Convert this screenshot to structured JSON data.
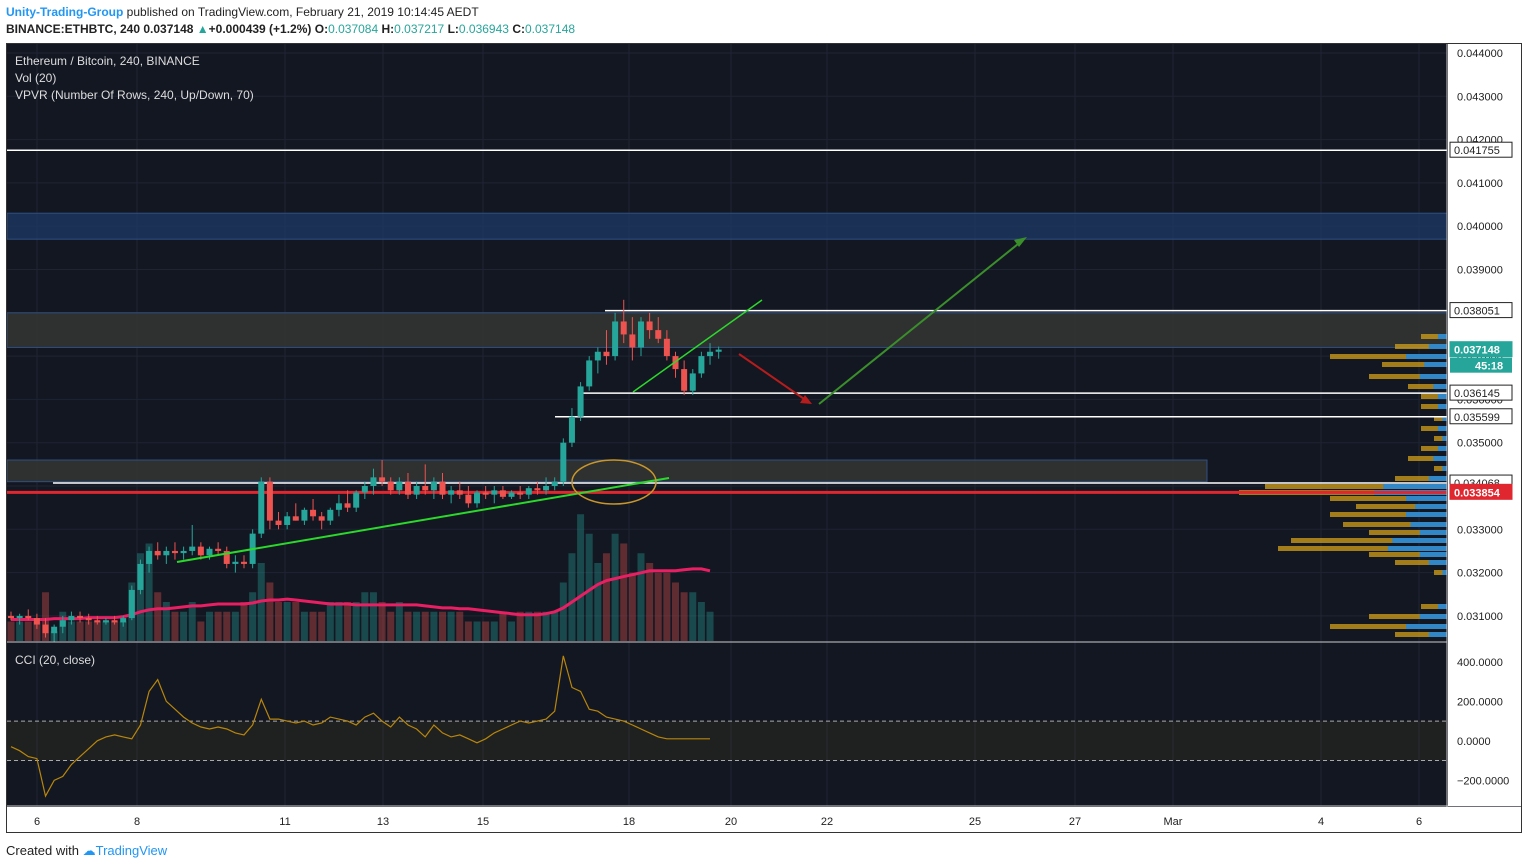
{
  "header": {
    "author": "Unity-Trading-Group",
    "published_text": "published on TradingView.com, February 21, 2019 10:14:45 AEDT",
    "symbol": "BINANCE:ETHBTC, 240",
    "price": "0.037148",
    "change": "+0.000439 (+1.2%)",
    "o_label": "O:",
    "o_value": "0.037084",
    "h_label": "H:",
    "h_value": "0.037217",
    "l_label": "L:",
    "l_value": "0.036943",
    "c_label": "C:",
    "c_value": "0.037148"
  },
  "legend": {
    "title": "Ethereum / Bitcoin, 240, BINANCE",
    "vol": "Vol (20)",
    "vpvr": "VPVR (Number Of Rows, 240, Up/Down, 70)",
    "cci": "CCI (20, close)"
  },
  "footer": {
    "created_with": "Created with",
    "brand": "TradingView"
  },
  "price_labels": {
    "countdown": "45:18"
  },
  "colors": {
    "background": "#131722",
    "up": "#26a69a",
    "down": "#ef5350",
    "vol_ma": "#e91e63",
    "cci": "#b8860b",
    "support_red": "#e0262f",
    "trend_green": "#2bd92b",
    "arrow_green": "#3a8f2a",
    "arrow_red": "#b71c1c"
  },
  "chart_data": {
    "type": "candlestick",
    "symbol": "ETHBTC",
    "timeframe": "240",
    "x_ticks": [
      "6",
      "8",
      "11",
      "13",
      "15",
      "18",
      "20",
      "22",
      "25",
      "27",
      "Mar",
      "4",
      "6"
    ],
    "y_ticks": [
      "0.044000",
      "0.043000",
      "0.042000",
      "0.041000",
      "0.040000",
      "0.039000",
      "0.038000",
      "0.037000",
      "0.036000",
      "0.035000",
      "0.034000",
      "0.033000",
      "0.032000",
      "0.031000"
    ],
    "ylim": [
      0.0303,
      0.0441
    ],
    "levels": [
      {
        "label": "0.041755",
        "value": 0.041755,
        "color": "#ffffff"
      },
      {
        "label": "0.038051",
        "value": 0.038051,
        "color": "#ffffff"
      },
      {
        "label": "0.036145",
        "value": 0.036145,
        "color": "#ffffff"
      },
      {
        "label": "0.035599",
        "value": 0.035599,
        "color": "#ffffff"
      },
      {
        "label": "0.034068",
        "value": 0.034068,
        "color": "#ffffff"
      },
      {
        "label": "0.033854",
        "value": 0.033854,
        "color": "#e0262f"
      },
      {
        "label": "0.037148",
        "value": 0.037148,
        "color": "#26a69a"
      }
    ],
    "zones": [
      {
        "from": 0.0397,
        "to": 0.0403
      },
      {
        "from": 0.0372,
        "to": 0.038
      },
      {
        "from": 0.0341,
        "to": 0.0346
      }
    ],
    "ohlc": [
      [
        0.031,
        0.0311,
        0.0309,
        0.03095
      ],
      [
        0.03095,
        0.03105,
        0.0308,
        0.031
      ],
      [
        0.031,
        0.03115,
        0.0309,
        0.03095
      ],
      [
        0.03095,
        0.03105,
        0.0307,
        0.0308
      ],
      [
        0.0308,
        0.03095,
        0.0305,
        0.0306
      ],
      [
        0.0306,
        0.0308,
        0.0304,
        0.03075
      ],
      [
        0.03075,
        0.031,
        0.0306,
        0.0309
      ],
      [
        0.0309,
        0.0311,
        0.0308,
        0.031
      ],
      [
        0.031,
        0.0311,
        0.03085,
        0.03095
      ],
      [
        0.03095,
        0.03105,
        0.0308,
        0.0309
      ],
      [
        0.0309,
        0.031,
        0.0308,
        0.03085
      ],
      [
        0.03085,
        0.03095,
        0.0308,
        0.0309
      ],
      [
        0.0309,
        0.031,
        0.0308,
        0.03085
      ],
      [
        0.03085,
        0.031,
        0.03075,
        0.03095
      ],
      [
        0.03095,
        0.0317,
        0.0309,
        0.0316
      ],
      [
        0.0316,
        0.0323,
        0.0315,
        0.0322
      ],
      [
        0.0322,
        0.0326,
        0.032,
        0.0325
      ],
      [
        0.0325,
        0.0327,
        0.0323,
        0.0324
      ],
      [
        0.0324,
        0.0326,
        0.0322,
        0.0325
      ],
      [
        0.0325,
        0.0327,
        0.0323,
        0.03245
      ],
      [
        0.03245,
        0.0326,
        0.0323,
        0.0325
      ],
      [
        0.0325,
        0.0331,
        0.0324,
        0.0326
      ],
      [
        0.0326,
        0.0327,
        0.0323,
        0.0324
      ],
      [
        0.0324,
        0.0326,
        0.0323,
        0.03255
      ],
      [
        0.03255,
        0.0327,
        0.0324,
        0.0325
      ],
      [
        0.0325,
        0.0326,
        0.0321,
        0.0322
      ],
      [
        0.0322,
        0.0324,
        0.032,
        0.03225
      ],
      [
        0.03225,
        0.0324,
        0.0321,
        0.0322
      ],
      [
        0.0322,
        0.033,
        0.0321,
        0.0329
      ],
      [
        0.0329,
        0.0342,
        0.0328,
        0.0341
      ],
      [
        0.0341,
        0.0342,
        0.033,
        0.0332
      ],
      [
        0.0332,
        0.0334,
        0.033,
        0.0331
      ],
      [
        0.0331,
        0.0334,
        0.033,
        0.0333
      ],
      [
        0.0333,
        0.0336,
        0.0332,
        0.0332
      ],
      [
        0.0332,
        0.0335,
        0.0331,
        0.03345
      ],
      [
        0.03345,
        0.0337,
        0.0332,
        0.0333
      ],
      [
        0.0333,
        0.0334,
        0.033,
        0.0332
      ],
      [
        0.0332,
        0.0335,
        0.0331,
        0.03345
      ],
      [
        0.03345,
        0.0338,
        0.0333,
        0.0336
      ],
      [
        0.0336,
        0.0339,
        0.0334,
        0.0335
      ],
      [
        0.0335,
        0.0339,
        0.0334,
        0.03385
      ],
      [
        0.03385,
        0.0341,
        0.0337,
        0.034
      ],
      [
        0.034,
        0.0344,
        0.0338,
        0.0342
      ],
      [
        0.0342,
        0.0346,
        0.034,
        0.0341
      ],
      [
        0.0341,
        0.0342,
        0.0338,
        0.0339
      ],
      [
        0.0339,
        0.0342,
        0.0338,
        0.0341
      ],
      [
        0.0341,
        0.0343,
        0.0337,
        0.0338
      ],
      [
        0.0338,
        0.0341,
        0.0337,
        0.034
      ],
      [
        0.034,
        0.0345,
        0.0338,
        0.0339
      ],
      [
        0.0339,
        0.0342,
        0.0337,
        0.0341
      ],
      [
        0.0341,
        0.0343,
        0.0337,
        0.0338
      ],
      [
        0.0338,
        0.034,
        0.0336,
        0.0339
      ],
      [
        0.0339,
        0.0341,
        0.0337,
        0.0338
      ],
      [
        0.0338,
        0.034,
        0.0335,
        0.0336
      ],
      [
        0.0336,
        0.0339,
        0.0335,
        0.03385
      ],
      [
        0.03385,
        0.034,
        0.0337,
        0.0338
      ],
      [
        0.0338,
        0.034,
        0.0336,
        0.0339
      ],
      [
        0.0339,
        0.034,
        0.0337,
        0.03375
      ],
      [
        0.03375,
        0.0339,
        0.0337,
        0.03385
      ],
      [
        0.03385,
        0.034,
        0.0337,
        0.0338
      ],
      [
        0.0338,
        0.034,
        0.0337,
        0.03395
      ],
      [
        0.03395,
        0.0341,
        0.0338,
        0.0339
      ],
      [
        0.0339,
        0.0342,
        0.0338,
        0.034
      ],
      [
        0.034,
        0.0342,
        0.0339,
        0.0341
      ],
      [
        0.0341,
        0.0351,
        0.034,
        0.035
      ],
      [
        0.035,
        0.0358,
        0.0349,
        0.0356
      ],
      [
        0.0356,
        0.0364,
        0.0355,
        0.0363
      ],
      [
        0.0363,
        0.037,
        0.0362,
        0.0369
      ],
      [
        0.0369,
        0.0372,
        0.0366,
        0.0371
      ],
      [
        0.0371,
        0.0376,
        0.0368,
        0.037
      ],
      [
        0.037,
        0.038,
        0.0369,
        0.0378
      ],
      [
        0.0378,
        0.0383,
        0.0373,
        0.0375
      ],
      [
        0.0375,
        0.0379,
        0.0369,
        0.0372
      ],
      [
        0.0372,
        0.0379,
        0.037,
        0.0378
      ],
      [
        0.0378,
        0.038,
        0.0374,
        0.0376
      ],
      [
        0.0376,
        0.0379,
        0.0373,
        0.0374
      ],
      [
        0.0374,
        0.0376,
        0.0369,
        0.037
      ],
      [
        0.037,
        0.0371,
        0.0365,
        0.0367
      ],
      [
        0.0367,
        0.0369,
        0.0361,
        0.0362
      ],
      [
        0.0362,
        0.0367,
        0.0361,
        0.0366
      ],
      [
        0.0366,
        0.0371,
        0.0365,
        0.037
      ],
      [
        0.037,
        0.0373,
        0.0368,
        0.0371
      ],
      [
        0.0371,
        0.03722,
        0.03694,
        0.03715
      ]
    ],
    "volume_ma": [
      0.22,
      0.22,
      0.22,
      0.22,
      0.22,
      0.23,
      0.23,
      0.23,
      0.23,
      0.24,
      0.24,
      0.24,
      0.24,
      0.25,
      0.27,
      0.3,
      0.32,
      0.33,
      0.33,
      0.34,
      0.35,
      0.36,
      0.36,
      0.37,
      0.38,
      0.38,
      0.38,
      0.38,
      0.39,
      0.41,
      0.42,
      0.42,
      0.43,
      0.42,
      0.41,
      0.4,
      0.39,
      0.38,
      0.38,
      0.38,
      0.37,
      0.37,
      0.37,
      0.37,
      0.37,
      0.37,
      0.37,
      0.37,
      0.36,
      0.35,
      0.34,
      0.34,
      0.33,
      0.33,
      0.32,
      0.31,
      0.3,
      0.29,
      0.28,
      0.27,
      0.27,
      0.27,
      0.28,
      0.3,
      0.34,
      0.4,
      0.46,
      0.52,
      0.58,
      0.62,
      0.64,
      0.66,
      0.68,
      0.7,
      0.72,
      0.72,
      0.72,
      0.72,
      0.73,
      0.74,
      0.74,
      0.72
    ],
    "volume": [
      0.2,
      0.2,
      0.2,
      0.2,
      0.5,
      0.1,
      0.3,
      0.2,
      0.2,
      0.2,
      0.2,
      0.2,
      0.2,
      0.2,
      0.6,
      0.9,
      1.0,
      0.5,
      0.4,
      0.3,
      0.3,
      0.4,
      0.2,
      0.3,
      0.3,
      0.3,
      0.3,
      0.4,
      0.5,
      0.8,
      0.6,
      0.4,
      0.4,
      0.4,
      0.3,
      0.3,
      0.3,
      0.4,
      0.4,
      0.4,
      0.4,
      0.5,
      0.5,
      0.4,
      0.3,
      0.4,
      0.3,
      0.3,
      0.3,
      0.3,
      0.3,
      0.3,
      0.3,
      0.2,
      0.2,
      0.2,
      0.2,
      0.3,
      0.2,
      0.3,
      0.3,
      0.3,
      0.3,
      0.3,
      0.6,
      0.9,
      1.3,
      1.1,
      0.8,
      0.9,
      1.1,
      1.0,
      0.7,
      0.9,
      0.8,
      0.7,
      0.7,
      0.6,
      0.5,
      0.5,
      0.4,
      0.3
    ],
    "cci_ticks": [
      "400.0000",
      "200.0000",
      "0.0000",
      "−200.0000"
    ],
    "cci_ylim": [
      -320,
      470
    ],
    "cci_bands": [
      100,
      -100
    ],
    "cci": [
      -30,
      -50,
      -80,
      -90,
      -280,
      -200,
      -180,
      -120,
      -80,
      -40,
      0,
      20,
      30,
      20,
      10,
      80,
      250,
      310,
      200,
      160,
      120,
      90,
      70,
      60,
      70,
      60,
      40,
      30,
      80,
      210,
      110,
      110,
      100,
      90,
      100,
      80,
      90,
      120,
      110,
      100,
      80,
      120,
      140,
      100,
      70,
      120,
      80,
      60,
      20,
      80,
      40,
      20,
      30,
      10,
      -10,
      10,
      40,
      60,
      80,
      100,
      90,
      100,
      110,
      150,
      430,
      270,
      250,
      160,
      150,
      120,
      110,
      100,
      80,
      60,
      40,
      20,
      10,
      10,
      10,
      10,
      10,
      10
    ]
  }
}
